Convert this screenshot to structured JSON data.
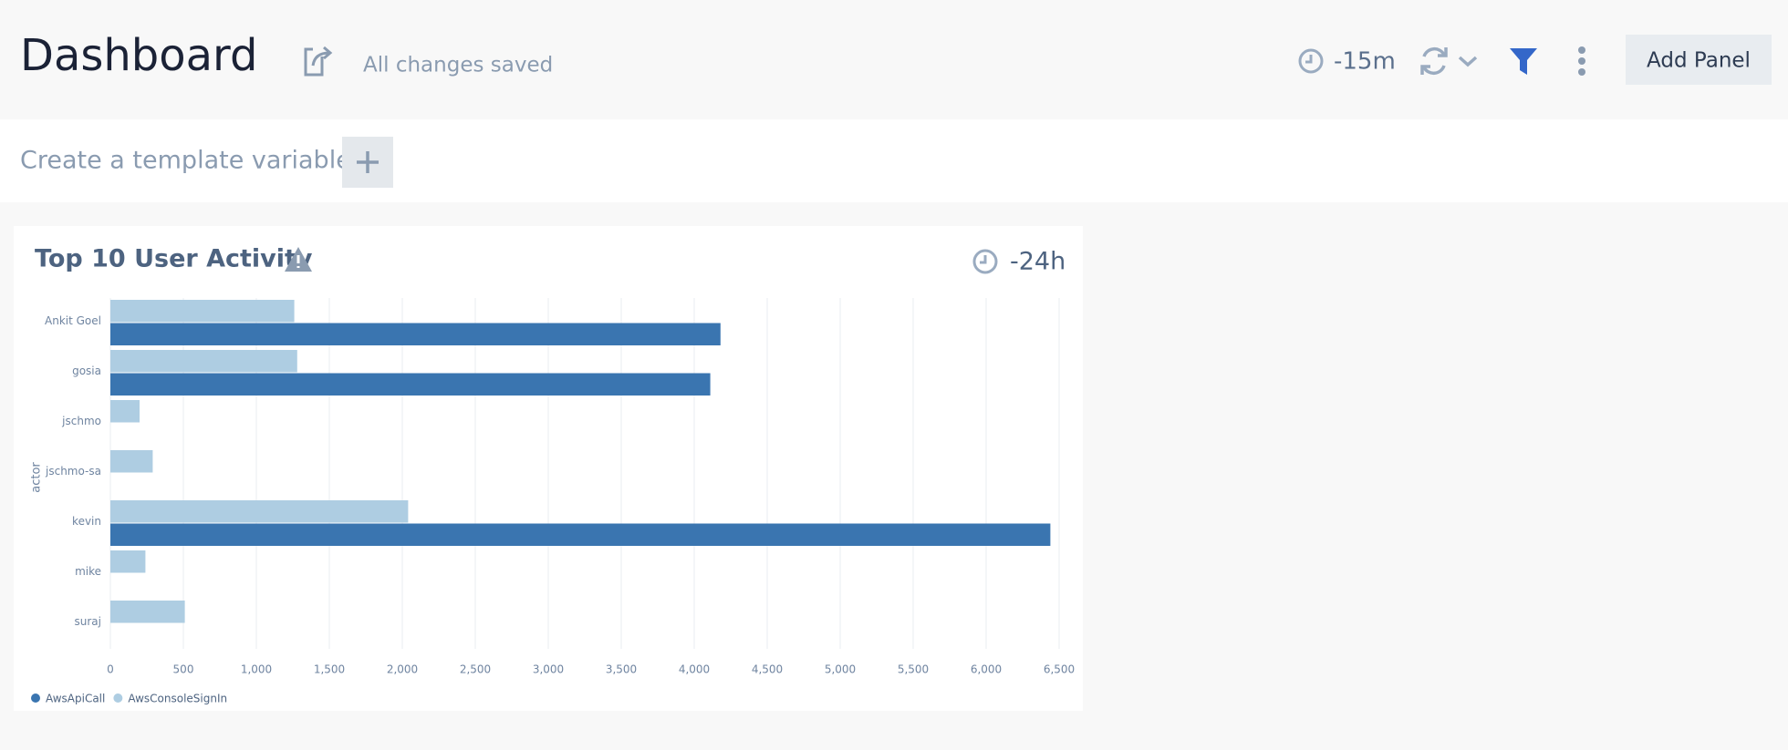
{
  "header": {
    "title": "Dashboard",
    "status": "All changes saved",
    "time_range": "-15m",
    "add_button": "Add Panel"
  },
  "template_bar": {
    "prompt": "Create a template variable"
  },
  "chart_data": {
    "type": "hbar",
    "title": "Top 10 User Activity",
    "time_range": "-24h",
    "y_label": "actor",
    "categories": [
      "Ankit Goel",
      "gosia",
      "jschmo",
      "jschmo-sa",
      "kevin",
      "mike",
      "suraj"
    ],
    "series": [
      {
        "name": "AwsApiCall",
        "color": "#3a75b0",
        "values": [
          4180,
          4110,
          null,
          null,
          6440,
          null,
          null
        ]
      },
      {
        "name": "AwsConsoleSignIn",
        "color": "#aecde2",
        "values": [
          1260,
          1280,
          200,
          290,
          2040,
          240,
          510
        ]
      }
    ],
    "xlim": [
      0,
      6500
    ],
    "xticks": [
      0,
      500,
      {
        "value": 1000,
        "label": "1,000"
      },
      {
        "value": 1500,
        "label": "1,500"
      },
      {
        "value": 2000,
        "label": "2,000"
      },
      {
        "value": 2500,
        "label": "2,500"
      },
      {
        "value": 3000,
        "label": "3,000"
      },
      {
        "value": 3500,
        "label": "3,500"
      },
      {
        "value": 4000,
        "label": "4,000"
      },
      {
        "value": 4500,
        "label": "4,500"
      },
      {
        "value": 5000,
        "label": "5,000"
      },
      {
        "value": 5500,
        "label": "5,500"
      },
      {
        "value": 6000,
        "label": "6,000"
      },
      {
        "value": 6500,
        "label": "6,500"
      }
    ],
    "grid": true
  }
}
